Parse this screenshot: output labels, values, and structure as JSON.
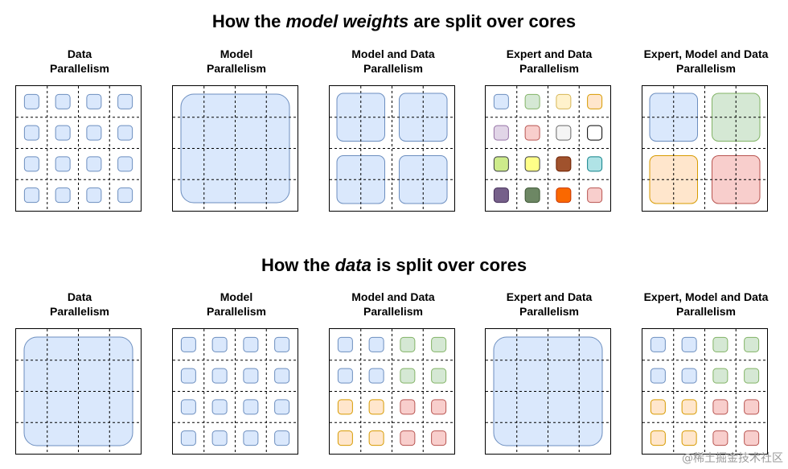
{
  "colors": {
    "blue": {
      "fill": "#dae8fc",
      "stroke": "#6c8ebf"
    },
    "green": {
      "fill": "#d5e8d4",
      "stroke": "#82b366"
    },
    "orange": {
      "fill": "#ffe6cc",
      "stroke": "#d79b00"
    },
    "red": {
      "fill": "#f8cecc",
      "stroke": "#b85450"
    },
    "yellow": {
      "fill": "#fff2cc",
      "stroke": "#d6b656"
    },
    "purple": {
      "fill": "#e1d5e7",
      "stroke": "#9673a6"
    },
    "gray": {
      "fill": "#f5f5f5",
      "stroke": "#666666"
    },
    "white": {
      "fill": "#ffffff",
      "stroke": "#000000"
    },
    "lime": {
      "fill": "#cdeb8b",
      "stroke": "#36393d"
    },
    "bright_yellow": {
      "fill": "#ffff88",
      "stroke": "#36393d"
    },
    "brown": {
      "fill": "#a0522d",
      "stroke": "#6d1f00"
    },
    "cyan": {
      "fill": "#b0e3e6",
      "stroke": "#0e8088"
    },
    "dark_purple": {
      "fill": "#76608a",
      "stroke": "#432d57"
    },
    "dark_green": {
      "fill": "#6d8764",
      "stroke": "#3a5431"
    },
    "dark_orange": {
      "fill": "#fa6800",
      "stroke": "#c73500"
    }
  },
  "sections": [
    {
      "title_prefix": "How the ",
      "title_emphasis": "model weights",
      "title_suffix": " are split over cores",
      "panels": [
        {
          "label": "Data\nParallelism",
          "mode": "small",
          "cells": [
            "blue",
            "blue",
            "blue",
            "blue",
            "blue",
            "blue",
            "blue",
            "blue",
            "blue",
            "blue",
            "blue",
            "blue",
            "blue",
            "blue",
            "blue",
            "blue"
          ]
        },
        {
          "label": "Model\nParallelism",
          "mode": "full",
          "color": "blue"
        },
        {
          "label": "Model and Data\nParallelism",
          "mode": "quad",
          "quads": [
            "blue",
            "blue",
            "blue",
            "blue"
          ]
        },
        {
          "label": "Expert and Data\nParallelism",
          "mode": "small",
          "cells": [
            "blue",
            "green",
            "yellow",
            "orange",
            "purple",
            "red",
            "gray",
            "white",
            "lime",
            "bright_yellow",
            "brown",
            "cyan",
            "dark_purple",
            "dark_green",
            "dark_orange",
            "red"
          ]
        },
        {
          "label": "Expert, Model and Data\nParallelism",
          "mode": "quad",
          "quads": [
            "blue",
            "green",
            "orange",
            "red"
          ]
        }
      ]
    },
    {
      "title_prefix": "How the ",
      "title_emphasis": "data",
      "title_suffix": " is split over cores",
      "panels": [
        {
          "label": "Data\nParallelism",
          "mode": "full",
          "color": "blue"
        },
        {
          "label": "Model\nParallelism",
          "mode": "small",
          "cells": [
            "blue",
            "blue",
            "blue",
            "blue",
            "blue",
            "blue",
            "blue",
            "blue",
            "blue",
            "blue",
            "blue",
            "blue",
            "blue",
            "blue",
            "blue",
            "blue"
          ]
        },
        {
          "label": "Model and Data\nParallelism",
          "mode": "small",
          "cells": [
            "blue",
            "blue",
            "green",
            "green",
            "blue",
            "blue",
            "green",
            "green",
            "orange",
            "orange",
            "red",
            "red",
            "orange",
            "orange",
            "red",
            "red"
          ]
        },
        {
          "label": "Expert and Data\nParallelism",
          "mode": "full",
          "color": "blue"
        },
        {
          "label": "Expert, Model and Data\nParallelism",
          "mode": "small",
          "cells": [
            "blue",
            "blue",
            "green",
            "green",
            "blue",
            "blue",
            "green",
            "green",
            "orange",
            "orange",
            "red",
            "red",
            "orange",
            "orange",
            "red",
            "red"
          ]
        }
      ]
    }
  ],
  "watermark": "@稀土掘金技术社区"
}
